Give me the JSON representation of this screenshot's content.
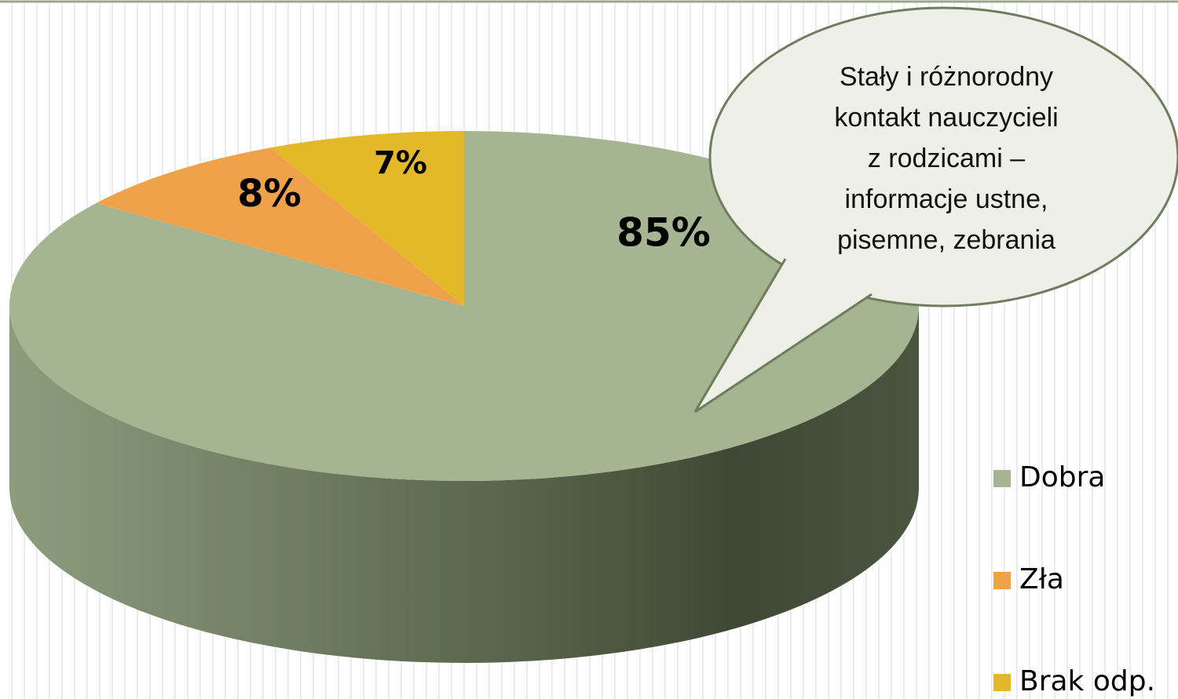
{
  "chart_data": {
    "type": "pie3d",
    "categories": [
      "Dobra",
      "Zła",
      "Brak odp."
    ],
    "values": [
      85,
      8,
      7
    ],
    "value_labels": [
      "85%",
      "8%",
      "7%"
    ],
    "colors": [
      "#a5b592",
      "#f0a24a",
      "#e3b92a"
    ],
    "annotation": [
      "Stały i różnorodny",
      "kontakt nauczycieli",
      "z rodzicami –",
      "informacje ustne,",
      "pisemne, zebrania"
    ]
  }
}
